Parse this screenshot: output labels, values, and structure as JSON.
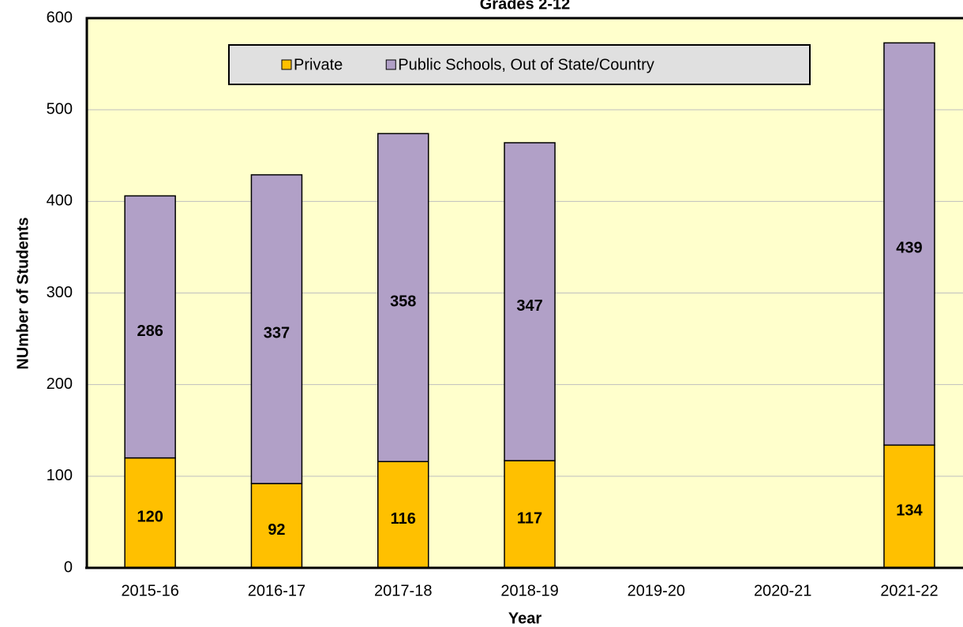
{
  "chart_data": {
    "type": "stacked_bar",
    "title": "Grades 2-12",
    "x_label": "Year",
    "y_label": "NUmber of Students",
    "categories": [
      "2015-16",
      "2016-17",
      "2017-18",
      "2018-19",
      "2019-20",
      "2020-21",
      "2021-22"
    ],
    "series": [
      {
        "name": "Private",
        "color": "#ffc000",
        "values": [
          120,
          92,
          116,
          117,
          null,
          null,
          134
        ]
      },
      {
        "name": "Public Schools, Out of State/Country",
        "color": "#b1a0c7",
        "values": [
          286,
          337,
          358,
          347,
          null,
          null,
          439
        ]
      }
    ],
    "ylim": [
      0,
      600
    ],
    "yticks": [
      0,
      100,
      200,
      300,
      400,
      500,
      600
    ],
    "grid": true,
    "legend": "top",
    "plot_background": "#ffffcc"
  }
}
